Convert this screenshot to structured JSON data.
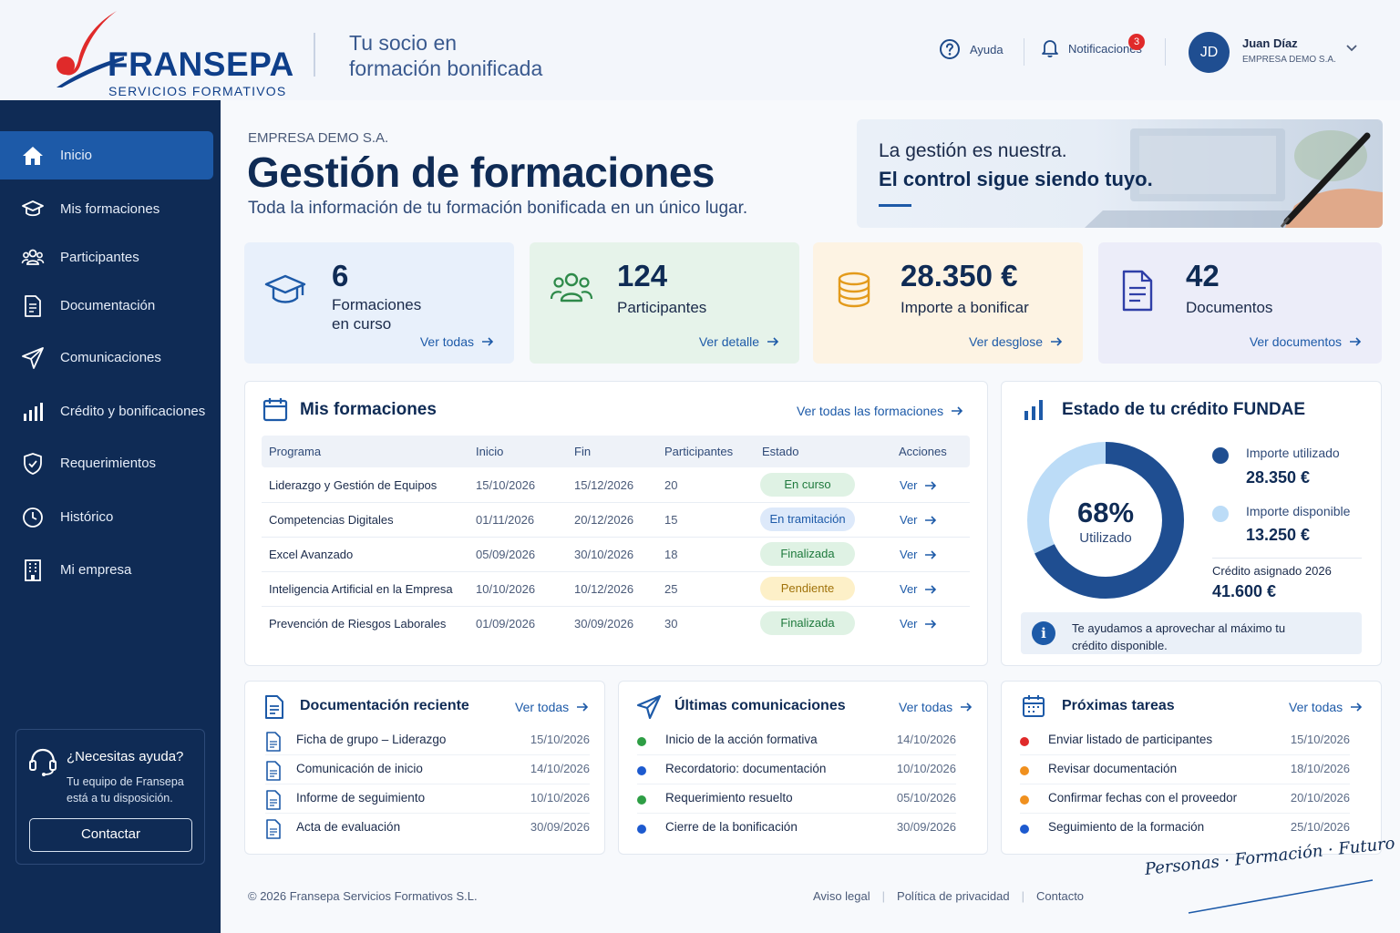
{
  "brand": {
    "name": "FRANSEPA",
    "subtitle": "SERVICIOS FORMATIVOS",
    "tagline_line1": "Tu socio en",
    "tagline_line2": "formación bonificada",
    "colors": {
      "navy": "#0f2b55",
      "blue": "#1d5aa8",
      "red": "#e02a2a"
    }
  },
  "header": {
    "help_label": "Ayuda",
    "notifications_label": "Notificaciones",
    "notifications_count": "3",
    "user": {
      "initials": "JD",
      "name": "Juan Díaz",
      "company": "EMPRESA DEMO S.A."
    }
  },
  "sidebar": {
    "items": [
      {
        "label": "Inicio",
        "icon": "home-icon",
        "active": true
      },
      {
        "label": "Mis formaciones",
        "icon": "graduation-cap-icon"
      },
      {
        "label": "Participantes",
        "icon": "users-icon"
      },
      {
        "label": "Documentación",
        "icon": "document-icon"
      },
      {
        "label": "Comunicaciones",
        "icon": "paper-plane-icon"
      },
      {
        "label": "Crédito y bonificaciones",
        "icon": "bar-chart-icon"
      },
      {
        "label": "Requerimientos",
        "icon": "shield-check-icon"
      },
      {
        "label": "Histórico",
        "icon": "clock-icon"
      },
      {
        "label": "Mi empresa",
        "icon": "building-icon"
      }
    ],
    "help": {
      "title": "¿Necesitas ayuda?",
      "text": "Tu equipo de Fransepa está a tu disposición.",
      "button": "Contactar"
    }
  },
  "page": {
    "company": "EMPRESA DEMO S.A.",
    "title": "Gestión de formaciones",
    "subtitle": "Toda la información de tu formación bonificada en un único lugar."
  },
  "hero": {
    "line1": "La gestión es nuestra.",
    "line2": "El control sigue siendo tuyo."
  },
  "stats": [
    {
      "value": "6",
      "label_line1": "Formaciones",
      "label_line2": "en curso",
      "link": "Ver todas",
      "icon": "graduation-cap-icon"
    },
    {
      "value": "124",
      "label_line1": "Participantes",
      "label_line2": "",
      "link": "Ver detalle",
      "icon": "users-icon"
    },
    {
      "value": "28.350 €",
      "label_line1": "Importe a bonificar",
      "label_line2": "",
      "link": "Ver desglose",
      "icon": "coins-icon"
    },
    {
      "value": "42",
      "label_line1": "Documentos",
      "label_line2": "",
      "link": "Ver documentos",
      "icon": "document-icon"
    }
  ],
  "trainings": {
    "title": "Mis formaciones",
    "link": "Ver todas las formaciones",
    "columns": [
      "Programa",
      "Inicio",
      "Fin",
      "Participantes",
      "Estado",
      "Acciones"
    ],
    "rows": [
      {
        "program": "Liderazgo y Gestión de Equipos",
        "start": "15/10/2026",
        "end": "15/12/2026",
        "participants": "20",
        "status": "En curso",
        "action": "Ver"
      },
      {
        "program": "Competencias Digitales",
        "start": "01/11/2026",
        "end": "20/12/2026",
        "participants": "15",
        "status": "En tramitación",
        "action": "Ver"
      },
      {
        "program": "Excel Avanzado",
        "start": "05/09/2026",
        "end": "30/10/2026",
        "participants": "18",
        "status": "Finalizada",
        "action": "Ver"
      },
      {
        "program": "Inteligencia Artificial en la Empresa",
        "start": "10/10/2026",
        "end": "10/12/2026",
        "participants": "25",
        "status": "Pendiente",
        "action": "Ver"
      },
      {
        "program": "Prevención de Riesgos Laborales",
        "start": "01/09/2026",
        "end": "30/09/2026",
        "participants": "30",
        "status": "Finalizada",
        "action": "Ver"
      }
    ],
    "status_colors": {
      "En curso": {
        "bg": "#dff2e4",
        "fg": "#1f7a3d"
      },
      "En tramitación": {
        "bg": "#dde9fa",
        "fg": "#1d5aa8"
      },
      "Finalizada": {
        "bg": "#dff2e4",
        "fg": "#1f7a3d"
      },
      "Pendiente": {
        "bg": "#fdf0c8",
        "fg": "#a0720a"
      }
    }
  },
  "credit": {
    "title": "Estado de tu crédito FUNDAE",
    "percent_label": "68%",
    "percent_caption": "Utilizado",
    "used_fraction": 0.68,
    "used_label": "Importe utilizado",
    "used_value": "28.350 €",
    "available_label": "Importe disponible",
    "available_value": "13.250 €",
    "assigned_label": "Crédito asignado 2026",
    "assigned_value": "41.600 €",
    "info": "Te ayudamos a aprovechar al máximo tu crédito disponible.",
    "used_color": "#1f4e91",
    "available_color": "#bcdcf7"
  },
  "documents": {
    "title": "Documentación reciente",
    "link": "Ver todas",
    "items": [
      {
        "name": "Ficha de grupo – Liderazgo",
        "date": "15/10/2026"
      },
      {
        "name": "Comunicación de inicio",
        "date": "14/10/2026"
      },
      {
        "name": "Informe de seguimiento",
        "date": "10/10/2026"
      },
      {
        "name": "Acta de evaluación",
        "date": "30/09/2026"
      }
    ]
  },
  "communications": {
    "title": "Últimas comunicaciones",
    "link": "Ver todas",
    "items": [
      {
        "text": "Inicio de la acción formativa",
        "date": "14/10/2026",
        "color": "#2e9e45"
      },
      {
        "text": "Recordatorio: documentación",
        "date": "10/10/2026",
        "color": "#1d5acf"
      },
      {
        "text": "Requerimiento resuelto",
        "date": "05/10/2026",
        "color": "#2e9e45"
      },
      {
        "text": "Cierre de la bonificación",
        "date": "30/09/2026",
        "color": "#1d5acf"
      }
    ]
  },
  "tasks": {
    "title": "Próximas tareas",
    "link": "Ver todas",
    "items": [
      {
        "text": "Enviar listado de participantes",
        "date": "15/10/2026",
        "color": "#e02a2a"
      },
      {
        "text": "Revisar documentación",
        "date": "18/10/2026",
        "color": "#f0901e"
      },
      {
        "text": "Confirmar fechas con el proveedor",
        "date": "20/10/2026",
        "color": "#f0901e"
      },
      {
        "text": "Seguimiento de la formación",
        "date": "25/10/2026",
        "color": "#1d5acf"
      }
    ]
  },
  "footer": {
    "copyright": "© 2026 Fransepa Servicios Formativos S.L.",
    "links": [
      "Aviso legal",
      "Política de privacidad",
      "Contacto"
    ],
    "slogan": "Personas · Formación · Futuro"
  }
}
